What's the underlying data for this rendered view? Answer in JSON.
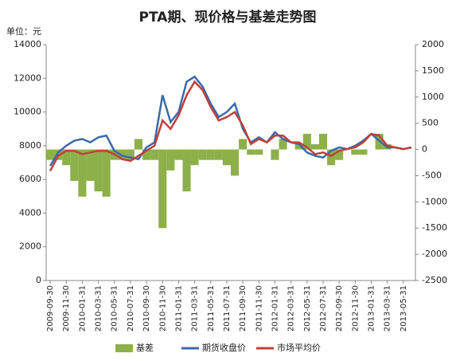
{
  "chart_data": {
    "type": "bar-line",
    "title": "PTA期、现价格与基差走势图",
    "unit_label": "单位：元",
    "categories": [
      "2009-09-30",
      null,
      "2009-11-30",
      null,
      "2010-01-31",
      null,
      "2010-03-31",
      null,
      "2010-05-31",
      null,
      "2010-07-31",
      null,
      "2010-09-30",
      null,
      "2010-11-30",
      null,
      "2011-01-31",
      null,
      "2011-03-31",
      null,
      "2011-05-31",
      null,
      "2011-07-31",
      null,
      "2011-09-30",
      null,
      "2011-11-30",
      null,
      "2012-01-31",
      null,
      "2012-03-31",
      null,
      "2012-05-31",
      null,
      "2012-07-31",
      null,
      "2012-09-30",
      null,
      "2012-11-30",
      null,
      "2013-01-31",
      null,
      "2013-03-31",
      null,
      "2013-05-31",
      null
    ],
    "series": [
      {
        "name": "基差",
        "color": "#8db04a",
        "axis": "y2",
        "kind": "bar",
        "values": [
          -200,
          -200,
          -300,
          -600,
          -900,
          -600,
          -800,
          -900,
          -200,
          -200,
          -200,
          200,
          -200,
          -200,
          -1500,
          -400,
          -200,
          -800,
          -300,
          -200,
          -200,
          -200,
          -300,
          -500,
          200,
          -100,
          -100,
          0,
          -200,
          200,
          0,
          100,
          300,
          100,
          300,
          -300,
          -200,
          0,
          -100,
          -100,
          0,
          300,
          100,
          0,
          0,
          0
        ]
      },
      {
        "name": "期货收盘价",
        "color": "#3a6aa8",
        "kind": "line",
        "values": [
          6800,
          7600,
          8000,
          8300,
          8400,
          8200,
          8500,
          8600,
          7700,
          7400,
          7300,
          7200,
          7900,
          8200,
          11000,
          9400,
          10000,
          11800,
          12100,
          11500,
          10500,
          9700,
          10000,
          10500,
          9000,
          8200,
          8500,
          8200,
          8800,
          8400,
          8200,
          8100,
          7600,
          7400,
          7300,
          7700,
          7900,
          7800,
          8000,
          8300,
          8700,
          8300,
          7900,
          7900,
          7800,
          7900
        ]
      },
      {
        "name": "市场平均价",
        "color": "#c0403c",
        "kind": "line",
        "values": [
          6500,
          7400,
          7700,
          7700,
          7500,
          7600,
          7700,
          7700,
          7500,
          7200,
          7100,
          7400,
          7700,
          8000,
          9500,
          9000,
          9800,
          11000,
          11800,
          11300,
          10300,
          9500,
          9700,
          10000,
          9200,
          8100,
          8400,
          8200,
          8600,
          8600,
          8200,
          8200,
          7900,
          7500,
          7600,
          7400,
          7700,
          7800,
          7900,
          8200,
          8700,
          8600,
          8000,
          7900,
          7800,
          7900
        ]
      }
    ],
    "ylim": [
      0,
      14000
    ],
    "yticks": [
      0,
      2000,
      4000,
      6000,
      8000,
      10000,
      12000,
      14000
    ],
    "y2lim": [
      -2500,
      2000
    ],
    "y2ticks": [
      -2500,
      -2000,
      -1500,
      -1000,
      -500,
      0,
      500,
      1000,
      1500,
      2000
    ],
    "legend": "bottom"
  }
}
